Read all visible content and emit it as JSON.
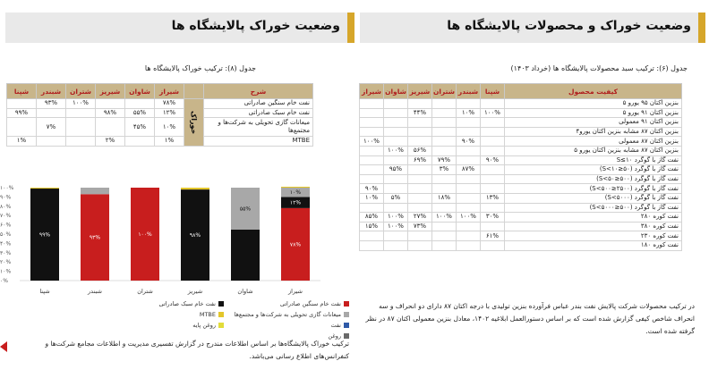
{
  "left": {
    "title": "وضعیت خوراک پالایشگاه ها",
    "table_caption": "جدول (۸): ترکیب خوراک پالایشگاه ها",
    "table": {
      "corner": "شرح",
      "columns": [
        "شیراز",
        "شاوان",
        "شیریز",
        "شتران",
        "شبندر",
        "شپنا"
      ],
      "side_label": "خوراک",
      "rows": [
        {
          "label": "نفت خام سنگین صادراتی",
          "cells": [
            "۷۸%",
            "",
            "",
            "۱۰۰%",
            "۹۳%",
            ""
          ]
        },
        {
          "label": "نفت خام سبک صادراتی",
          "cells": [
            "۱۲%",
            "۵۵%",
            "۹۸%",
            "",
            "",
            "۹۹%"
          ]
        },
        {
          "label": "میعانات گازی تحویلی به شرکت‌ها و مجتمع‌ها",
          "cells": [
            "۱۰%",
            "۴۵%",
            "",
            "",
            "۷%",
            ""
          ]
        },
        {
          "label": "MTBE",
          "cells": [
            "۱%",
            "",
            "۲%",
            "",
            "",
            "۱%"
          ]
        }
      ]
    },
    "chart_data": {
      "type": "bar",
      "stacked": true,
      "categories": [
        "شپنا",
        "شبندر",
        "شتران",
        "شیریز",
        "شاوان",
        "شیراز"
      ],
      "series": [
        {
          "name": "نفت خام سنگین صادراتی",
          "color": "#c81e1e",
          "values": [
            0,
            93,
            100,
            0,
            0,
            78
          ]
        },
        {
          "name": "نفت خام سبک صادراتی",
          "color": "#111111",
          "values": [
            99,
            0,
            0,
            98,
            55,
            12
          ]
        },
        {
          "name": "میعانات گازی تحویلی به شرکت‌ها و مجتمع‌ها",
          "color": "#a8a8a8",
          "values": [
            0,
            7,
            0,
            0,
            45,
            10
          ]
        },
        {
          "name": "MTBE",
          "color": "#e3c62b",
          "values": [
            1,
            0,
            0,
            2,
            0,
            1
          ]
        }
      ],
      "extra_legend": [
        {
          "name": "نفت",
          "color": "#2f5aa8"
        },
        {
          "name": "روغن",
          "color": "#6a6a6a"
        },
        {
          "name": "روغن پایه",
          "color": "#e2dc3a"
        }
      ],
      "data_labels": [
        [
          "۹۹%",
          "",
          ""
        ],
        [
          "۹۳%",
          "",
          "۷%"
        ],
        [
          "۱۰۰%",
          "",
          ""
        ],
        [
          "۹۸%",
          "",
          ""
        ],
        [
          "",
          "۵۵%",
          "۴۵%"
        ],
        [
          "۷۸%",
          "۱۲%",
          "۱۰%"
        ]
      ],
      "yticks": [
        "۱۰۰%",
        "۹۰%",
        "۸۰%",
        "۷۰%",
        "۶۰%",
        "۵۰%",
        "۴۰%",
        "۳۰%",
        "۲۰%",
        "۱۰%",
        "۰%"
      ],
      "ylim": [
        0,
        100
      ]
    },
    "note": "ترکیب خوراک پالایشگاه‌ها بر اساس اطلاعات مندرج در گزارش تفسیری مدیریت و اطلاعات مجامع شرکت‌ها و کنفرانس‌های اطلاع رسانی می‌باشد."
  },
  "right": {
    "title": "وضعیت خوراک و محصولات پالایشگاه ها",
    "table_caption": "جدول (۶): ترکیب سبد محصولات پالایشگاه ها (خرداد ۱۴۰۳)",
    "table": {
      "corner": "کیفیت محصول",
      "columns": [
        "شپنا",
        "شبندر",
        "شتران",
        "شیریز",
        "شاوان",
        "شیراز"
      ],
      "rows": [
        {
          "label": "بنزین اکتان ۹۵ یورو ۵",
          "cells": [
            "",
            "",
            "",
            "",
            "",
            ""
          ]
        },
        {
          "label": "بنزین اکتان ۹۱ یورو ۵",
          "cells": [
            "۱۰۰%",
            "۱۰%",
            "",
            "۴۴%",
            "",
            ""
          ]
        },
        {
          "label": "بنزین اکتان ۹۱ معمولی",
          "cells": [
            "",
            "",
            "",
            "",
            "",
            ""
          ]
        },
        {
          "label": "بنزین اکتان ۸۷ مشابه بنزین اکتان یورو۴",
          "cells": [
            "",
            "",
            "",
            "",
            "",
            ""
          ]
        },
        {
          "label": "بنزین اکتان ۸۷ معمولی",
          "cells": [
            "",
            "۹۰%",
            "",
            "",
            "",
            "۱۰۰%"
          ]
        },
        {
          "label": "بنزین اکتان ۸۷ مشابه بنزین اکتان یورو ۵",
          "cells": [
            "",
            "",
            "",
            "۵۶%",
            "۱۰۰%",
            ""
          ]
        },
        {
          "label": "نفت گاز با گوگرد S≤۱۰",
          "cells": [
            "۹۰%",
            "",
            "۷۹%",
            "۶۹%",
            "",
            ""
          ]
        },
        {
          "label": "نفت گاز با گوگرد (۵۰≤S<۱۰)",
          "cells": [
            "",
            "۸۷%",
            "۳%",
            "",
            "۹۵%",
            ""
          ]
        },
        {
          "label": "نفت گاز با گوگرد (۵۰۰≤S<۵۰)",
          "cells": [
            "",
            "",
            "",
            "",
            "",
            ""
          ]
        },
        {
          "label": "نفت گاز با گوگرد (۲۵۰۰≤S<۵۰۰)",
          "cells": [
            "",
            "",
            "",
            "",
            "",
            "۹۰%"
          ]
        },
        {
          "label": "نفت گاز با گوگرد (S<۵۰۰۰)",
          "cells": [
            "۱۳%",
            "",
            "۱۸%",
            "",
            "۵%",
            "۱۰%"
          ]
        },
        {
          "label": "نفت گاز با گوگرد (۵۰۰≤S<۵۰۰۰)",
          "cells": [
            "",
            "",
            "",
            "",
            "",
            ""
          ]
        },
        {
          "label": "نفت کوره ۲۸۰",
          "cells": [
            "۳۰%",
            "۱۰۰%",
            "۱۰۰%",
            "۲۷%",
            "۱۰۰%",
            "۸۵%"
          ]
        },
        {
          "label": "نفت کوره ۳۸۰",
          "cells": [
            "",
            "",
            "",
            "۷۳%",
            "۱۰۰%",
            "۱۵%"
          ]
        },
        {
          "label": "نفت کوره ۲۳۰",
          "cells": [
            "۶۱%",
            "",
            "",
            "",
            "",
            ""
          ]
        },
        {
          "label": "نفت کوره ۱۸۰",
          "cells": [
            "",
            "",
            "",
            "",
            "",
            ""
          ]
        }
      ]
    },
    "note": "در ترکیب محصولات شرکت پالایش نفت بندر عباس فرآورده بنزین تولیدی با درجه اکتان ۸۷ دارای دو انحراف و سه انحراف شاخص کیفی گزارش شده است که بر اساس دستورالعمل ابلاغیه ۱۴۰۲، معادل بنزین معمولی اکتان ۸۷ در نظر گرفته شده است."
  },
  "colors": {
    "accent": "#d6a62a",
    "header_bg": "#c8b58a",
    "red": "#c81e1e"
  }
}
